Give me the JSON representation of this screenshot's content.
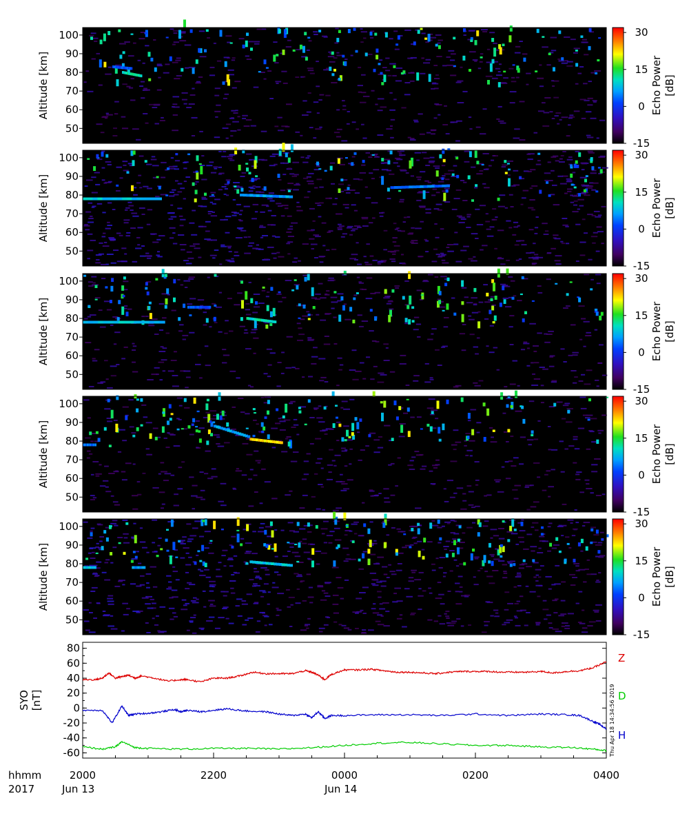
{
  "chart_data": [
    {
      "type": "heatmap",
      "panel": 1,
      "ylabel": "Altitude [km]",
      "y_ticks": [
        "100",
        "90",
        "80",
        "70",
        "60",
        "50"
      ],
      "ylim": [
        42,
        104
      ],
      "colorbar": {
        "label_line1": "Echo Power",
        "label_line2": "[dB]",
        "ticks": [
          "30",
          "15",
          "0",
          "-15"
        ],
        "range": [
          -15,
          32
        ]
      },
      "layers": [
        {
          "alt_start": 80,
          "alt_end": 78,
          "t_start": 0.6,
          "t_end": 0.9,
          "strength": 0.55
        },
        {
          "alt_start": 83,
          "alt_end": 82,
          "t_start": 0.45,
          "t_end": 0.75,
          "strength": 0.35
        }
      ],
      "echo_times": [
        0.25,
        0.5,
        1.0,
        1.55,
        2.1,
        2.6,
        3.0,
        3.3,
        3.9,
        4.5,
        5.2,
        5.95,
        6.3,
        6.45
      ],
      "echo_alt_range": [
        72,
        104
      ],
      "noise_level": 0.35
    },
    {
      "type": "heatmap",
      "panel": 2,
      "ylabel": "Altitude [km]",
      "y_ticks": [
        "100",
        "90",
        "80",
        "70",
        "60",
        "50"
      ],
      "ylim": [
        42,
        104
      ],
      "colorbar": {
        "label_line1": "Echo Power",
        "label_line2": "[dB]",
        "ticks": [
          "30",
          "15",
          "0",
          "-15"
        ],
        "range": [
          -15,
          32
        ]
      },
      "layers": [
        {
          "alt_start": 78,
          "alt_end": 78,
          "t_start": 0.0,
          "t_end": 1.2,
          "strength": 0.5
        },
        {
          "alt_start": 80,
          "alt_end": 79,
          "t_start": 2.4,
          "t_end": 3.2,
          "strength": 0.45
        },
        {
          "alt_start": 84,
          "alt_end": 85,
          "t_start": 4.7,
          "t_end": 5.6,
          "strength": 0.4
        }
      ],
      "echo_times": [
        0.7,
        1.8,
        2.4,
        2.65,
        3.1,
        3.9,
        4.6,
        5.1,
        5.5,
        6.0,
        6.4
      ],
      "echo_alt_range": [
        76,
        104
      ],
      "noise_level": 0.75
    },
    {
      "type": "heatmap",
      "panel": 3,
      "ylabel": "Altitude [km]",
      "y_ticks": [
        "100",
        "90",
        "80",
        "70",
        "60",
        "50"
      ],
      "ylim": [
        42,
        104
      ],
      "colorbar": {
        "label_line1": "Echo Power",
        "label_line2": "[dB]",
        "ticks": [
          "30",
          "15",
          "0",
          "-15"
        ],
        "range": [
          -15,
          32
        ]
      },
      "layers": [
        {
          "alt_start": 78,
          "alt_end": 78,
          "t_start": 0.0,
          "t_end": 1.25,
          "strength": 0.5
        },
        {
          "alt_start": 80,
          "alt_end": 78,
          "t_start": 2.5,
          "t_end": 2.95,
          "strength": 0.55
        },
        {
          "alt_start": 86,
          "alt_end": 86,
          "t_start": 1.6,
          "t_end": 1.95,
          "strength": 0.35
        }
      ],
      "echo_times": [
        0.5,
        0.9,
        1.25,
        2.5,
        2.8,
        3.4,
        4.0,
        4.6,
        5.05,
        5.5,
        5.9,
        6.15,
        6.35
      ],
      "echo_alt_range": [
        74,
        104
      ],
      "noise_level": 0.3
    },
    {
      "type": "heatmap",
      "panel": 4,
      "ylabel": "Altitude [km]",
      "y_ticks": [
        "100",
        "90",
        "80",
        "70",
        "60",
        "50"
      ],
      "ylim": [
        42,
        104
      ],
      "colorbar": {
        "label_line1": "Echo Power",
        "label_line2": "[dB]",
        "ticks": [
          "30",
          "15",
          "0",
          "-15"
        ],
        "range": [
          -15,
          32
        ]
      },
      "layers": [
        {
          "alt_start": 88,
          "alt_end": 82,
          "t_start": 2.0,
          "t_end": 2.55,
          "strength": 0.45
        },
        {
          "alt_start": 81,
          "alt_end": 79,
          "t_start": 2.55,
          "t_end": 3.05,
          "strength": 0.8
        },
        {
          "alt_start": 78,
          "alt_end": 78,
          "t_start": 0.0,
          "t_end": 0.2,
          "strength": 0.4
        }
      ],
      "echo_times": [
        0.4,
        0.9,
        1.3,
        1.7,
        2.0,
        3.2,
        3.8,
        4.1,
        4.5,
        4.9,
        5.4,
        5.85,
        6.2,
        6.5
      ],
      "echo_alt_range": [
        76,
        104
      ],
      "noise_level": 0.3
    },
    {
      "type": "heatmap",
      "panel": 5,
      "ylabel": "Altitude [km]",
      "y_ticks": [
        "100",
        "90",
        "80",
        "70",
        "60",
        "50"
      ],
      "ylim": [
        42,
        104
      ],
      "colorbar": {
        "label_line1": "Echo Power",
        "label_line2": "[dB]",
        "ticks": [
          "30",
          "15",
          "0",
          "-15"
        ],
        "range": [
          -15,
          32
        ]
      },
      "layers": [
        {
          "alt_start": 78,
          "alt_end": 78,
          "t_start": 0.0,
          "t_end": 0.2,
          "strength": 0.5
        },
        {
          "alt_start": 81,
          "alt_end": 79,
          "t_start": 2.55,
          "t_end": 3.2,
          "strength": 0.5
        },
        {
          "alt_start": 78,
          "alt_end": 78,
          "t_start": 0.75,
          "t_end": 0.95,
          "strength": 0.45
        }
      ],
      "echo_times": [
        0.3,
        0.7,
        1.3,
        1.9,
        2.4,
        2.8,
        3.4,
        3.9,
        4.3,
        4.7,
        5.2,
        5.6,
        6.0,
        6.3,
        6.5
      ],
      "echo_alt_range": [
        78,
        104
      ],
      "noise_level": 0.65
    },
    {
      "type": "line",
      "ylabel_line1": "SYO",
      "ylabel_line2": "[nT]",
      "y_ticks": [
        "80",
        "60",
        "40",
        "20",
        "0",
        "-20",
        "-40",
        "-60"
      ],
      "ylim": [
        -67,
        88
      ],
      "x_ticks": [
        "2000",
        "2200",
        "0000",
        "0200",
        "0400"
      ],
      "x_unit": "hours since 2000 UT Jun 13",
      "xlim": [
        0,
        8
      ],
      "series": [
        {
          "name": "Z",
          "color": "#dd0000",
          "x": [
            0,
            0.2,
            0.3,
            0.4,
            0.5,
            0.6,
            0.7,
            0.8,
            0.9,
            1.1,
            1.3,
            1.5,
            1.6,
            1.8,
            2.0,
            2.2,
            2.4,
            2.6,
            2.8,
            3.0,
            3.2,
            3.4,
            3.5,
            3.6,
            3.7,
            3.8,
            4.0,
            4.2,
            4.4,
            4.6,
            4.8,
            5.0,
            5.2,
            5.4,
            5.6,
            5.8,
            6.0,
            6.2,
            6.4,
            6.6,
            6.8,
            7.0,
            7.2,
            7.4,
            7.6,
            7.8,
            8.0
          ],
          "y": [
            38,
            38,
            40,
            47,
            40,
            42,
            44,
            40,
            43,
            40,
            36,
            38,
            38,
            35,
            40,
            40,
            43,
            48,
            46,
            46,
            46,
            50,
            48,
            44,
            38,
            45,
            51,
            51,
            52,
            50,
            48,
            48,
            47,
            46,
            48,
            49,
            49,
            49,
            48,
            48,
            48,
            49,
            47,
            49,
            50,
            54,
            62
          ]
        },
        {
          "name": "D",
          "color": "#00cc00",
          "x": [
            0,
            0.3,
            0.5,
            0.6,
            0.8,
            1.0,
            1.5,
            2.0,
            2.5,
            3.0,
            3.5,
            4.0,
            4.5,
            5.0,
            5.5,
            6.0,
            6.5,
            7.0,
            7.5,
            7.8,
            8.0
          ],
          "y": [
            -52,
            -55,
            -52,
            -45,
            -53,
            -54,
            -55,
            -54,
            -54,
            -55,
            -53,
            -50,
            -47,
            -46,
            -48,
            -50,
            -50,
            -52,
            -53,
            -55,
            -57
          ]
        },
        {
          "name": "H",
          "color": "#0000cc",
          "x": [
            0,
            0.3,
            0.45,
            0.6,
            0.7,
            0.8,
            1.0,
            1.2,
            1.4,
            1.5,
            1.6,
            1.8,
            2.0,
            2.2,
            2.5,
            2.8,
            3.0,
            3.2,
            3.4,
            3.5,
            3.6,
            3.7,
            3.8,
            4.0,
            4.5,
            5.0,
            5.5,
            6.0,
            6.5,
            7.0,
            7.4,
            7.6,
            7.8,
            7.9,
            8.0
          ],
          "y": [
            -3,
            -3,
            -20,
            3,
            -10,
            -8,
            -7,
            -5,
            -2,
            -5,
            -3,
            -5,
            -3,
            -1,
            -4,
            -5,
            -8,
            -10,
            -8,
            -13,
            -5,
            -14,
            -10,
            -10,
            -9,
            -9,
            -10,
            -8,
            -10,
            -8,
            -9,
            -10,
            -18,
            -22,
            -28
          ]
        }
      ]
    }
  ],
  "timestamp_vertical": "Thu Apr 18 14:34:56 2019",
  "footer": {
    "row1_left": "hhmm",
    "row2_left": "2017",
    "date1": "Jun 13",
    "date2": "Jun 14"
  }
}
